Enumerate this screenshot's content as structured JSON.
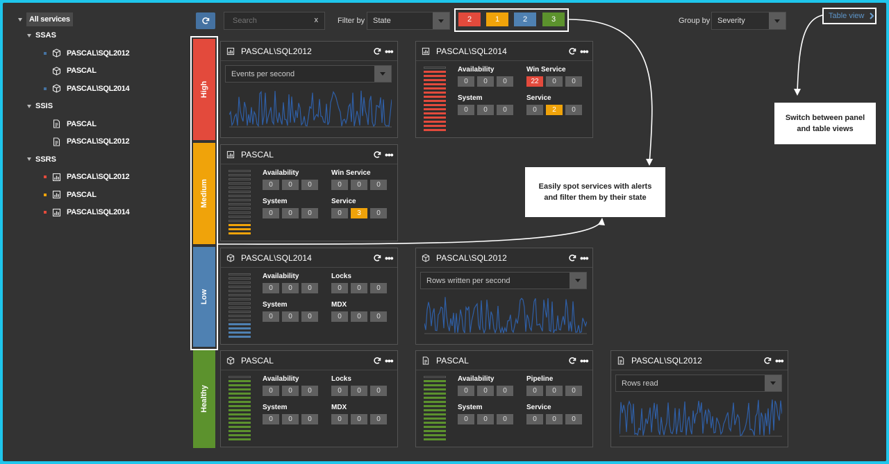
{
  "tree": {
    "root": "All services",
    "groups": [
      {
        "label": "SSAS",
        "items": [
          {
            "label": "PASCAL\\SQL2012",
            "icon": "cube-icon",
            "marker": "#4572a1"
          },
          {
            "label": "PASCAL",
            "icon": "cube-icon",
            "marker": ""
          },
          {
            "label": "PASCAL\\SQL2014",
            "icon": "cube-icon",
            "marker": "#4572a1"
          }
        ]
      },
      {
        "label": "SSIS",
        "items": [
          {
            "label": "PASCAL",
            "icon": "package-doc-icon",
            "marker": ""
          },
          {
            "label": "PASCAL\\SQL2012",
            "icon": "package-doc-icon",
            "marker": ""
          }
        ]
      },
      {
        "label": "SSRS",
        "items": [
          {
            "label": "PASCAL\\SQL2012",
            "icon": "report-chart-icon",
            "marker": "#e34a3c"
          },
          {
            "label": "PASCAL",
            "icon": "report-chart-icon",
            "marker": "#f0a30a"
          },
          {
            "label": "PASCAL\\SQL2014",
            "icon": "report-chart-icon",
            "marker": "#e34a3c"
          }
        ]
      }
    ]
  },
  "toolbar": {
    "search_placeholder": "Search",
    "search_clear": "x",
    "filter_label": "Filter by",
    "filter_value": "State",
    "state_counts": [
      {
        "value": "2",
        "color": "#e34a3c"
      },
      {
        "value": "1",
        "color": "#f0a30a"
      },
      {
        "value": "2",
        "color": "#4f81b2"
      },
      {
        "value": "3",
        "color": "#5c922d"
      }
    ],
    "group_label": "Group by",
    "group_value": "Severity",
    "table_view_label": "Table view"
  },
  "severity": [
    {
      "label": "High",
      "color": "#e34a3c"
    },
    {
      "label": "Medium",
      "color": "#f0a30a"
    },
    {
      "label": "Low",
      "color": "#4f81b2"
    },
    {
      "label": "Healthy",
      "color": "#5c922d"
    }
  ],
  "panels": [
    {
      "title": "PASCAL\\SQL2012",
      "icon": "report-chart-icon",
      "kind": "chart",
      "metric": "Events per second"
    },
    {
      "title": "PASCAL\\SQL2014",
      "icon": "report-chart-icon",
      "kind": "status",
      "level_color": "#e34a3c",
      "filled_levels": 15,
      "groups": [
        {
          "label": "Availability",
          "values": [
            "0",
            "0",
            "0"
          ],
          "highlight": [
            null,
            null,
            null
          ]
        },
        {
          "label": "Win Service",
          "values": [
            "22",
            "0",
            "0"
          ],
          "highlight": [
            "#e34a3c",
            null,
            null
          ]
        },
        {
          "label": "System",
          "values": [
            "0",
            "0",
            "0"
          ],
          "highlight": [
            null,
            null,
            null
          ]
        },
        {
          "label": "Service",
          "values": [
            "0",
            "2",
            "0"
          ],
          "highlight": [
            null,
            "#f0a30a",
            null
          ]
        }
      ]
    },
    {
      "title": "PASCAL",
      "icon": "report-chart-icon",
      "kind": "status",
      "level_color": "#f0a30a",
      "filled_levels": 3,
      "groups": [
        {
          "label": "Availability",
          "values": [
            "0",
            "0",
            "0"
          ],
          "highlight": [
            null,
            null,
            null
          ]
        },
        {
          "label": "Win Service",
          "values": [
            "0",
            "0",
            "0"
          ],
          "highlight": [
            null,
            null,
            null
          ]
        },
        {
          "label": "System",
          "values": [
            "0",
            "0",
            "0"
          ],
          "highlight": [
            null,
            null,
            null
          ]
        },
        {
          "label": "Service",
          "values": [
            "0",
            "3",
            "0"
          ],
          "highlight": [
            null,
            "#f0a30a",
            null
          ]
        }
      ]
    },
    {
      "title": "PASCAL\\SQL2014",
      "icon": "cube-icon",
      "kind": "status",
      "level_color": "#4f81b2",
      "filled_levels": 4,
      "groups": [
        {
          "label": "Availability",
          "values": [
            "0",
            "0",
            "0"
          ],
          "highlight": [
            null,
            null,
            null
          ]
        },
        {
          "label": "Locks",
          "values": [
            "0",
            "0",
            "0"
          ],
          "highlight": [
            null,
            null,
            null
          ]
        },
        {
          "label": "System",
          "values": [
            "0",
            "0",
            "0"
          ],
          "highlight": [
            null,
            null,
            null
          ]
        },
        {
          "label": "MDX",
          "values": [
            "0",
            "0",
            "0"
          ],
          "highlight": [
            null,
            null,
            null
          ]
        }
      ]
    },
    {
      "title": "PASCAL\\SQL2012",
      "icon": "cube-icon",
      "kind": "chart",
      "metric": "Rows written per second"
    },
    {
      "title": "PASCAL",
      "icon": "cube-icon",
      "kind": "status",
      "level_color": "#5c922d",
      "filled_levels": 15,
      "groups": [
        {
          "label": "Availability",
          "values": [
            "0",
            "0",
            "0"
          ],
          "highlight": [
            null,
            null,
            null
          ]
        },
        {
          "label": "Locks",
          "values": [
            "0",
            "0",
            "0"
          ],
          "highlight": [
            null,
            null,
            null
          ]
        },
        {
          "label": "System",
          "values": [
            "0",
            "0",
            "0"
          ],
          "highlight": [
            null,
            null,
            null
          ]
        },
        {
          "label": "MDX",
          "values": [
            "0",
            "0",
            "0"
          ],
          "highlight": [
            null,
            null,
            null
          ]
        }
      ]
    },
    {
      "title": "PASCAL",
      "icon": "package-doc-icon",
      "kind": "status",
      "level_color": "#5c922d",
      "filled_levels": 15,
      "groups": [
        {
          "label": "Availability",
          "values": [
            "0",
            "0",
            "0"
          ],
          "highlight": [
            null,
            null,
            null
          ]
        },
        {
          "label": "Pipeline",
          "values": [
            "0",
            "0",
            "0"
          ],
          "highlight": [
            null,
            null,
            null
          ]
        },
        {
          "label": "System",
          "values": [
            "0",
            "0",
            "0"
          ],
          "highlight": [
            null,
            null,
            null
          ]
        },
        {
          "label": "Service",
          "values": [
            "0",
            "0",
            "0"
          ],
          "highlight": [
            null,
            null,
            null
          ]
        }
      ]
    },
    {
      "title": "PASCAL\\SQL2012",
      "icon": "package-doc-icon",
      "kind": "chart",
      "metric": "Rows read"
    }
  ],
  "callouts": {
    "alerts": "Easily spot services with alerts and filter them by their state",
    "views": "Switch between panel and table views"
  },
  "colors": {
    "accent": "#4572a1",
    "link": "#5d95c9",
    "highlight_border": "#ffffff",
    "sparkline": "#2f5fa7"
  }
}
